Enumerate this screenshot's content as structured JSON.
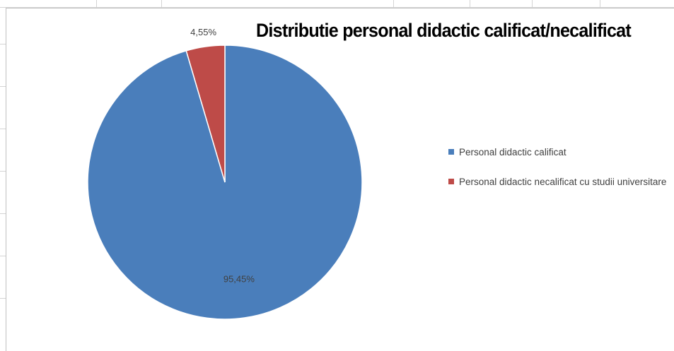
{
  "chart_data": {
    "type": "pie",
    "title": "Distributie personal didactic calificat/necalificat",
    "slices": [
      {
        "label": "Personal didactic calificat",
        "value": 95.45,
        "display": "95,45%",
        "color": "#4a7ebb"
      },
      {
        "label": "Personal didactic necalificat cu studii universitare",
        "value": 4.55,
        "display": "4,55%",
        "color": "#be4b48"
      }
    ],
    "legend_position": "right"
  }
}
